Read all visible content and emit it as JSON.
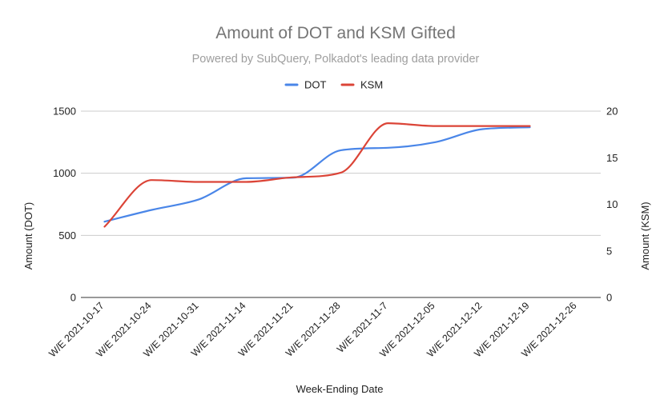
{
  "chart_data": {
    "type": "line",
    "title": "Amount of DOT and KSM Gifted",
    "subtitle": "Powered by SubQuery, Polkadot's leading data provider",
    "xlabel": "Week-Ending Date",
    "ylabel_left": "Amount (DOT)",
    "ylabel_right": "Amount (KSM)",
    "categories": [
      "W/E 2021-10-17",
      "W/E 2021-10-24",
      "W/E 2021-10-31",
      "W/E 2021-11-14",
      "W/E 2021-11-21",
      "W/E 2021-11-28",
      "W/E 2021-11-7",
      "W/E 2021-12-05",
      "W/E 2021-12-12",
      "W/E 2021-12-19",
      "W/E 2021-12-26"
    ],
    "ylim_left": [
      0,
      1500
    ],
    "yticks_left": [
      "0",
      "500",
      "1000",
      "1500"
    ],
    "ylim_right": [
      0,
      20
    ],
    "yticks_right": [
      "0",
      "5",
      "10",
      "15",
      "20"
    ],
    "grid": true,
    "legend_position": "top",
    "series": [
      {
        "name": "DOT",
        "axis": "left",
        "color": "#4a86e8",
        "values": [
          610,
          705,
          790,
          960,
          965,
          1185,
          1205,
          1250,
          1355,
          1370,
          null
        ]
      },
      {
        "name": "KSM",
        "axis": "right",
        "color": "#db4437",
        "values": [
          7.6,
          12.6,
          12.4,
          12.4,
          12.9,
          13.4,
          18.7,
          18.4,
          18.4,
          18.4,
          null
        ]
      }
    ]
  }
}
